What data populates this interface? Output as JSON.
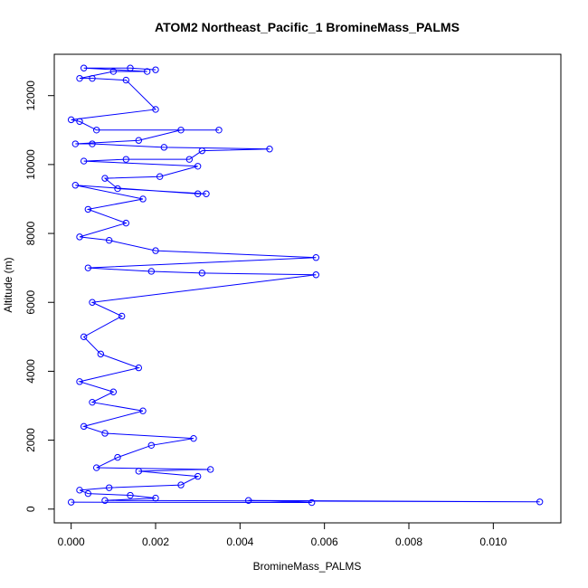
{
  "chart_data": {
    "type": "line",
    "title": "ATOM2 Northeast_Pacific_1 BromineMass_PALMS",
    "xlabel": "BromineMass_PALMS",
    "ylabel": "Altitude (m)",
    "xlim": [
      -0.0004,
      0.0116
    ],
    "ylim": [
      -400,
      13200
    ],
    "xticks": [
      0.0,
      0.002,
      0.004,
      0.006,
      0.008,
      0.01
    ],
    "xtick_labels": [
      "0.000",
      "0.002",
      "0.004",
      "0.006",
      "0.008",
      "0.010"
    ],
    "yticks": [
      0,
      2000,
      4000,
      6000,
      8000,
      10000,
      12000
    ],
    "ytick_labels": [
      "0",
      "2000",
      "4000",
      "6000",
      "8000",
      "10000",
      "12000"
    ],
    "grid": false,
    "series": [
      {
        "color": "#0000ff",
        "marker": "open-circle",
        "points": [
          [
            0.0,
            200
          ],
          [
            0.0057,
            190
          ],
          [
            0.0042,
            250
          ],
          [
            0.0111,
            210
          ],
          [
            0.0008,
            250
          ],
          [
            0.002,
            320
          ],
          [
            0.0014,
            400
          ],
          [
            0.0004,
            450
          ],
          [
            0.0002,
            550
          ],
          [
            0.0009,
            620
          ],
          [
            0.0026,
            700
          ],
          [
            0.003,
            950
          ],
          [
            0.0016,
            1100
          ],
          [
            0.0033,
            1150
          ],
          [
            0.0006,
            1200
          ],
          [
            0.0011,
            1500
          ],
          [
            0.0019,
            1850
          ],
          [
            0.0029,
            2050
          ],
          [
            0.0008,
            2200
          ],
          [
            0.0003,
            2400
          ],
          [
            0.0017,
            2850
          ],
          [
            0.0005,
            3100
          ],
          [
            0.001,
            3400
          ],
          [
            0.0002,
            3700
          ],
          [
            0.0016,
            4100
          ],
          [
            0.0007,
            4500
          ],
          [
            0.0003,
            5000
          ],
          [
            0.0012,
            5600
          ],
          [
            0.0005,
            6000
          ],
          [
            0.0058,
            6800
          ],
          [
            0.0031,
            6850
          ],
          [
            0.0019,
            6900
          ],
          [
            0.0004,
            7000
          ],
          [
            0.0058,
            7300
          ],
          [
            0.002,
            7500
          ],
          [
            0.0009,
            7800
          ],
          [
            0.0002,
            7900
          ],
          [
            0.0013,
            8300
          ],
          [
            0.0004,
            8700
          ],
          [
            0.0017,
            9000
          ],
          [
            0.0001,
            9400
          ],
          [
            0.003,
            9150
          ],
          [
            0.0032,
            9150
          ],
          [
            0.0011,
            9300
          ],
          [
            0.0008,
            9600
          ],
          [
            0.0021,
            9650
          ],
          [
            0.003,
            9950
          ],
          [
            0.0003,
            10100
          ],
          [
            0.0013,
            10150
          ],
          [
            0.0028,
            10150
          ],
          [
            0.0031,
            10400
          ],
          [
            0.0047,
            10450
          ],
          [
            0.0022,
            10500
          ],
          [
            0.0005,
            10600
          ],
          [
            0.0001,
            10600
          ],
          [
            0.0016,
            10700
          ],
          [
            0.0026,
            11000
          ],
          [
            0.0035,
            11000
          ],
          [
            0.0006,
            11000
          ],
          [
            0.0002,
            11250
          ],
          [
            0.0,
            11300
          ],
          [
            0.002,
            11600
          ],
          [
            0.0013,
            12450
          ],
          [
            0.0005,
            12500
          ],
          [
            0.0002,
            12500
          ],
          [
            0.001,
            12700
          ],
          [
            0.0018,
            12700
          ],
          [
            0.0003,
            12800
          ],
          [
            0.0014,
            12800
          ],
          [
            0.002,
            12750
          ]
        ]
      }
    ]
  }
}
